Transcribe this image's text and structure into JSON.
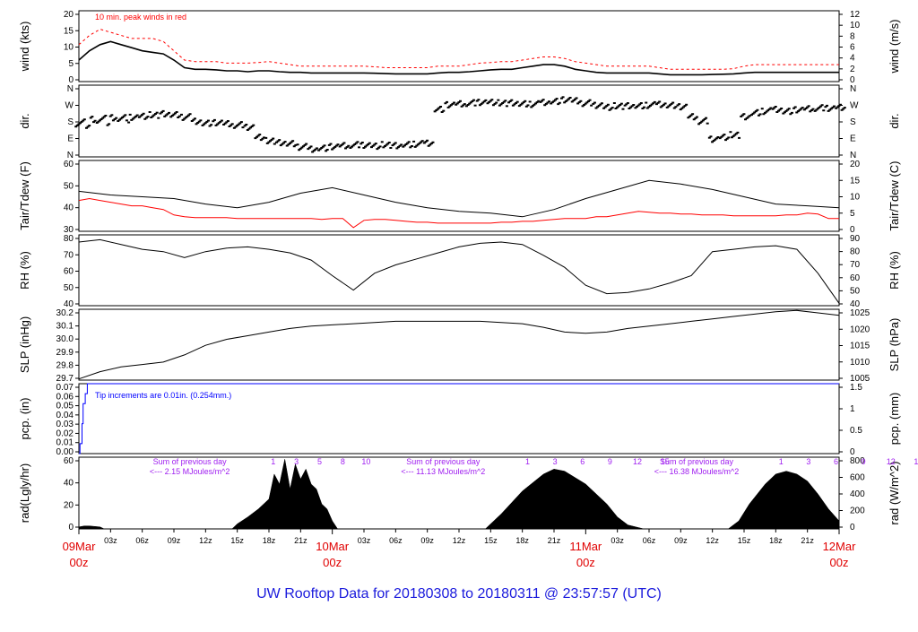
{
  "page_title": "UW Rooftop Data for 20180308  to  20180311 @ 23:57:57  (UTC)",
  "x_axis": {
    "hour_ticks": [
      "03z",
      "06z",
      "09z",
      "12z",
      "15z",
      "18z",
      "21z"
    ],
    "day_labels": [
      {
        "date": "09Mar",
        "time": "00z"
      },
      {
        "date": "10Mar",
        "time": "00z"
      },
      {
        "date": "11Mar",
        "time": "00z"
      },
      {
        "date": "12Mar",
        "time": "00z"
      }
    ]
  },
  "chart_data": [
    {
      "type": "line",
      "id": "wind",
      "left_label": "wind (kts)",
      "right_label": "wind (m/s)",
      "left_ticks": [
        "0",
        "5",
        "10",
        "15",
        "20"
      ],
      "right_ticks": [
        "0",
        "2",
        "4",
        "6",
        "8",
        "10",
        "12"
      ],
      "ylim": [
        0,
        23
      ],
      "annotation": "10 min. peak winds in red",
      "series": [
        {
          "color": "#000000",
          "x": [
            0,
            1,
            2,
            3,
            4,
            5,
            6,
            7,
            8,
            9,
            10,
            11,
            12,
            13,
            14,
            15,
            16,
            17,
            18,
            19,
            20,
            21,
            22,
            23,
            24,
            25,
            26,
            27,
            28,
            29,
            30,
            31,
            32,
            33,
            34,
            35,
            36,
            37,
            38,
            39,
            40,
            41,
            42,
            43,
            44,
            45,
            46,
            47,
            48,
            49,
            50,
            51,
            52,
            53,
            54,
            55,
            56,
            57,
            58,
            59,
            60,
            61,
            62,
            63,
            64,
            65,
            66,
            67,
            68,
            69,
            70,
            71,
            72
          ],
          "values": [
            7,
            10,
            12,
            13,
            12,
            11,
            10,
            9.5,
            9,
            7,
            4.5,
            4,
            4,
            3.8,
            3.5,
            3.5,
            3.2,
            3.5,
            3.5,
            3.2,
            3,
            3,
            2.8,
            2.8,
            2.8,
            2.8,
            2.8,
            2.8,
            2.7,
            2.6,
            2.5,
            2.5,
            2.5,
            2.5,
            2.8,
            3,
            3,
            3.2,
            3.5,
            3.8,
            4,
            4,
            4.5,
            5,
            5.5,
            5.5,
            5,
            4,
            3.5,
            3,
            2.8,
            2.8,
            2.8,
            2.8,
            2.8,
            2.5,
            2.2,
            2.2,
            2.2,
            2.2,
            2.3,
            2.4,
            2.5,
            2.8,
            3,
            3,
            3,
            3,
            3,
            3,
            3,
            3,
            3
          ]
        },
        {
          "color": "#ff0000",
          "x": [
            0,
            1,
            2,
            3,
            4,
            5,
            6,
            7,
            8,
            9,
            10,
            11,
            12,
            13,
            14,
            15,
            16,
            17,
            18,
            19,
            20,
            21,
            22,
            23,
            24,
            25,
            26,
            27,
            28,
            29,
            30,
            31,
            32,
            33,
            34,
            35,
            36,
            37,
            38,
            39,
            40,
            41,
            42,
            43,
            44,
            45,
            46,
            47,
            48,
            49,
            50,
            51,
            52,
            53,
            54,
            55,
            56,
            57,
            58,
            59,
            60,
            61,
            62,
            63,
            64,
            65,
            66,
            67,
            68,
            69,
            70,
            71,
            72
          ],
          "values": [
            12,
            15,
            17,
            16,
            15,
            14,
            14,
            14,
            13,
            10,
            7,
            6.5,
            6.5,
            6.5,
            6,
            6,
            6,
            6.2,
            6.5,
            6,
            5.5,
            5,
            5,
            5,
            5,
            5,
            5,
            5,
            4.8,
            4.5,
            4.5,
            4.5,
            4.5,
            4.5,
            5,
            5,
            5,
            5.5,
            6,
            6.2,
            6.5,
            6.5,
            7,
            7.5,
            8,
            8,
            7.5,
            6.5,
            6,
            5.5,
            5,
            5,
            5,
            5,
            5,
            4.5,
            4,
            4,
            4,
            4,
            4,
            4,
            4.2,
            5,
            5.5,
            5.5,
            5.5,
            5.5,
            5.5,
            5.5,
            5.5,
            5.5,
            5.5
          ]
        }
      ]
    },
    {
      "type": "scatter",
      "id": "dir",
      "left_label": "dir.",
      "right_label": "dir.",
      "left_ticks": [
        "N",
        "E",
        "S",
        "W",
        "N"
      ],
      "right_ticks": [
        "N",
        "E",
        "S",
        "W",
        "N"
      ],
      "ylim": [
        0,
        360
      ],
      "series": [
        {
          "color": "#000000",
          "x": [
            0,
            1,
            2,
            3,
            4,
            5,
            6,
            7,
            8,
            9,
            10,
            11,
            12,
            13,
            14,
            15,
            16,
            17,
            18,
            19,
            20,
            21,
            22,
            23,
            24,
            25,
            26,
            27,
            28,
            29,
            30,
            31,
            32,
            33,
            34,
            35,
            36,
            37,
            38,
            39,
            40,
            41,
            42,
            43,
            44,
            45,
            46,
            47,
            48,
            49,
            50,
            51,
            52,
            53,
            54,
            55,
            56,
            57,
            58,
            59,
            60,
            61,
            62,
            63,
            64,
            65,
            66,
            67,
            68,
            69,
            70,
            71,
            72
          ],
          "values": [
            185,
            190,
            195,
            195,
            195,
            200,
            205,
            210,
            215,
            210,
            200,
            180,
            170,
            170,
            165,
            160,
            150,
            100,
            80,
            70,
            65,
            50,
            40,
            45,
            50,
            55,
            60,
            60,
            55,
            60,
            55,
            60,
            65,
            70,
            240,
            260,
            265,
            270,
            275,
            275,
            270,
            270,
            265,
            265,
            275,
            280,
            285,
            280,
            270,
            260,
            250,
            255,
            255,
            255,
            260,
            265,
            260,
            250,
            200,
            180,
            90,
            100,
            110,
            200,
            220,
            230,
            240,
            230,
            235,
            240,
            245,
            245,
            250
          ]
        }
      ]
    },
    {
      "type": "line",
      "id": "temp",
      "left_label": "Tair/Tdew (F)",
      "right_label": "Tair/Tdew (C)",
      "left_ticks": [
        "30",
        "40",
        "50",
        "60"
      ],
      "right_ticks": [
        "0",
        "5",
        "10",
        "15",
        "20"
      ],
      "ylim": [
        29,
        68
      ],
      "series": [
        {
          "color": "#000000",
          "x": [
            0,
            3,
            6,
            9,
            12,
            15,
            18,
            21,
            24,
            27,
            30,
            33,
            36,
            39,
            42,
            45,
            48,
            51,
            54,
            57,
            60,
            63,
            66,
            69,
            72
          ],
          "values": [
            51,
            49,
            48,
            47,
            44,
            42,
            45,
            50,
            53,
            49,
            45,
            42,
            40,
            39,
            37,
            41,
            47,
            52,
            57,
            55,
            52,
            48,
            44,
            43,
            42
          ]
        },
        {
          "color": "#ff0000",
          "x": [
            0,
            1,
            2,
            3,
            4,
            5,
            6,
            7,
            8,
            9,
            10,
            11,
            12,
            13,
            14,
            15,
            16,
            17,
            18,
            19,
            20,
            21,
            22,
            23,
            24,
            25,
            26,
            27,
            28,
            29,
            30,
            31,
            32,
            33,
            34,
            35,
            36,
            37,
            38,
            39,
            40,
            41,
            42,
            43,
            44,
            45,
            46,
            47,
            48,
            49,
            50,
            51,
            52,
            53,
            54,
            55,
            56,
            57,
            58,
            59,
            60,
            61,
            62,
            63,
            64,
            65,
            66,
            67,
            68,
            69,
            70,
            71,
            72
          ],
          "values": [
            46,
            47,
            46,
            45,
            44,
            43,
            43,
            42,
            41,
            38,
            37,
            36.5,
            36.5,
            36.5,
            36.5,
            36,
            36,
            36,
            36,
            36,
            36,
            36,
            36,
            35.5,
            36,
            36,
            31,
            35,
            35.5,
            35.5,
            35,
            34.5,
            34,
            34,
            33.5,
            33.5,
            33.5,
            33.5,
            33.5,
            33.5,
            34,
            34,
            34.5,
            34.5,
            35,
            35.5,
            36,
            36,
            36,
            37,
            37,
            38,
            39,
            40,
            39.5,
            39,
            39,
            38.5,
            38.5,
            38,
            38,
            38,
            37.5,
            37.5,
            37.5,
            37.5,
            37.5,
            38,
            38,
            39,
            38.5,
            36,
            36
          ]
        }
      ]
    },
    {
      "type": "line",
      "id": "rh",
      "left_label": "RH (%)",
      "right_label": "RH (%)",
      "left_ticks": [
        "40",
        "50",
        "60",
        "70",
        "80"
      ],
      "right_ticks": [
        "40",
        "50",
        "60",
        "70",
        "80",
        "90"
      ],
      "ylim": [
        33,
        92
      ],
      "series": [
        {
          "color": "#000000",
          "x": [
            0,
            2,
            4,
            6,
            8,
            10,
            12,
            14,
            16,
            18,
            20,
            22,
            24,
            26,
            28,
            30,
            32,
            34,
            36,
            38,
            40,
            42,
            44,
            46,
            48,
            50,
            52,
            54,
            56,
            58,
            60,
            62,
            64,
            66,
            68,
            70,
            72
          ],
          "values": [
            86,
            88,
            84,
            80,
            78,
            73,
            78,
            81,
            82,
            80,
            77,
            71,
            58,
            46,
            60,
            67,
            72,
            77,
            82,
            85,
            86,
            84,
            75,
            65,
            50,
            43,
            44,
            47,
            52,
            58,
            78,
            80,
            82,
            83,
            80,
            60,
            35
          ]
        }
      ]
    },
    {
      "type": "line",
      "id": "slp",
      "left_label": "SLP (inHg)",
      "right_label": "SLP (hPa)",
      "left_ticks": [
        "29.7",
        "29.8",
        "29.9",
        "30.0",
        "30.1",
        "30.2"
      ],
      "right_ticks": [
        "1005",
        "1010",
        "1015",
        "1020",
        "1025"
      ],
      "ylim": [
        29.67,
        30.26
      ],
      "series": [
        {
          "color": "#000000",
          "x": [
            0,
            2,
            4,
            6,
            8,
            10,
            12,
            14,
            16,
            18,
            20,
            22,
            24,
            26,
            28,
            30,
            32,
            34,
            36,
            38,
            40,
            42,
            44,
            46,
            48,
            50,
            52,
            54,
            56,
            58,
            60,
            62,
            64,
            66,
            68,
            70,
            72
          ],
          "values": [
            29.68,
            29.74,
            29.78,
            29.8,
            29.82,
            29.88,
            29.96,
            30.01,
            30.04,
            30.07,
            30.1,
            30.12,
            30.13,
            30.14,
            30.15,
            30.16,
            30.16,
            30.16,
            30.16,
            30.16,
            30.15,
            30.14,
            30.11,
            30.07,
            30.06,
            30.07,
            30.1,
            30.12,
            30.14,
            30.16,
            30.18,
            30.2,
            30.22,
            30.24,
            30.25,
            30.23,
            30.21
          ]
        }
      ]
    },
    {
      "type": "line",
      "id": "pcp",
      "left_label": "pcp. (in)",
      "right_label": "pcp. (mm)",
      "left_ticks": [
        "0.00",
        "0.01",
        "0.02",
        "0.03",
        "0.04",
        "0.05",
        "0.06",
        "0.07"
      ],
      "right_ticks": [
        "0",
        "0.5",
        "1",
        "1.5"
      ],
      "ylim": [
        0,
        0.07
      ],
      "annotation": "Tip increments are 0.01in. (0.254mm.)",
      "series": [
        {
          "color": "#0000ff",
          "x": [
            0,
            0.1,
            0.3,
            0.4,
            0.6,
            0.8,
            1.0,
            72
          ],
          "values": [
            0,
            0.01,
            0.03,
            0.05,
            0.06,
            0.07,
            0.07,
            0.07
          ]
        }
      ]
    },
    {
      "type": "area",
      "id": "rad",
      "left_label": "rad(Lgly/hr)",
      "right_label": "rad (W/m^2)",
      "left_ticks": [
        "0",
        "20",
        "40",
        "60"
      ],
      "right_ticks": [
        "0",
        "200",
        "400",
        "600",
        "800"
      ],
      "ylim": [
        0,
        72
      ],
      "sun_hours": [
        {
          "labels": [
            "1",
            "3",
            "5",
            "8",
            "10"
          ]
        },
        {
          "labels": [
            "1",
            "3",
            "6",
            "9",
            "12",
            "15"
          ]
        },
        {
          "labels": [
            "1",
            "3",
            "6",
            "9",
            "12",
            "15"
          ]
        }
      ],
      "day_sums": [
        {
          "line1": "Sum of previous day",
          "line2": "<--- 2.15 MJoules/m^2"
        },
        {
          "line1": "Sum of previous day",
          "line2": "<--- 11.13 MJoules/m^2"
        },
        {
          "line1": "Sum of previous day",
          "line2": "<--- 16.38 MJoules/m^2"
        }
      ],
      "series": [
        {
          "color": "#000000",
          "x": [
            0,
            0.5,
            1,
            2,
            2.4,
            14.5,
            15,
            16,
            17,
            18,
            18.5,
            19,
            19.5,
            20,
            20.5,
            21,
            21.5,
            22,
            22.5,
            23,
            23.5,
            24,
            24.5,
            38.5,
            40,
            42,
            44,
            45,
            46,
            48,
            50,
            51,
            52,
            53.5,
            61.5,
            62.5,
            63.5,
            65,
            66,
            67,
            68,
            69,
            70,
            71,
            72
          ],
          "values": [
            2,
            3,
            3,
            2,
            0,
            0,
            5,
            12,
            20,
            30,
            55,
            45,
            70,
            40,
            65,
            50,
            60,
            45,
            40,
            25,
            20,
            8,
            0,
            0,
            15,
            38,
            55,
            60,
            58,
            45,
            25,
            12,
            4,
            0,
            0,
            8,
            25,
            45,
            55,
            58,
            55,
            48,
            35,
            20,
            8
          ]
        }
      ]
    }
  ]
}
